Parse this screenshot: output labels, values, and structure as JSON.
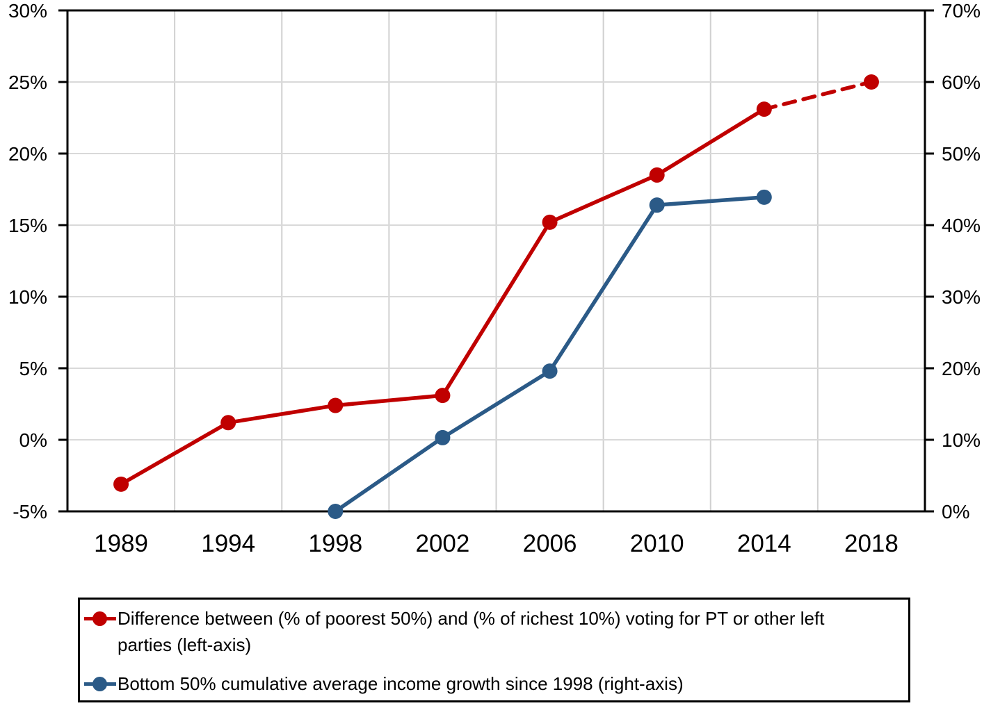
{
  "chart_data": {
    "type": "line",
    "categories": [
      "1989",
      "1994",
      "1998",
      "2002",
      "2006",
      "2010",
      "2014",
      "2018"
    ],
    "left_axis": {
      "min": -5,
      "max": 30,
      "tick_values": [
        30,
        25,
        20,
        15,
        10,
        5,
        0,
        -5
      ],
      "tick_labels": [
        "30%",
        "25%",
        "20%",
        "15%",
        "10%",
        "5%",
        "0%",
        "-5%"
      ]
    },
    "right_axis": {
      "min": 0,
      "max": 70,
      "tick_values": [
        70,
        60,
        50,
        40,
        30,
        20,
        10,
        0
      ],
      "tick_labels": [
        "70%",
        "60%",
        "50%",
        "40%",
        "30%",
        "20%",
        "10%",
        "0%"
      ]
    },
    "series": [
      {
        "key": "vote-gap",
        "name": "Difference between (% of poorest 50%) and (% of richest 10%) voting for PT or other left parties (left-axis)",
        "axis": "left",
        "color": "#C00000",
        "values": [
          -3.1,
          1.2,
          2.4,
          3.1,
          15.2,
          18.5,
          23.1,
          25.0
        ],
        "dashed_from_index": 6
      },
      {
        "key": "income-growth",
        "name": "Bottom 50% cumulative average income growth since 1998 (right-axis)",
        "axis": "right",
        "color": "#2B5A87",
        "values": [
          null,
          null,
          0.0,
          10.3,
          19.6,
          42.8,
          43.9,
          null
        ],
        "dashed_from_index": null
      }
    ],
    "grid": true,
    "legend_position": "bottom",
    "title": "",
    "xlabel": "",
    "ylabel_left": "",
    "ylabel_right": ""
  },
  "style_colors": {
    "gridline_horizontal": "#D9D9D9",
    "gridline_vertical": "#D0D0D0",
    "axis": "#000000"
  }
}
